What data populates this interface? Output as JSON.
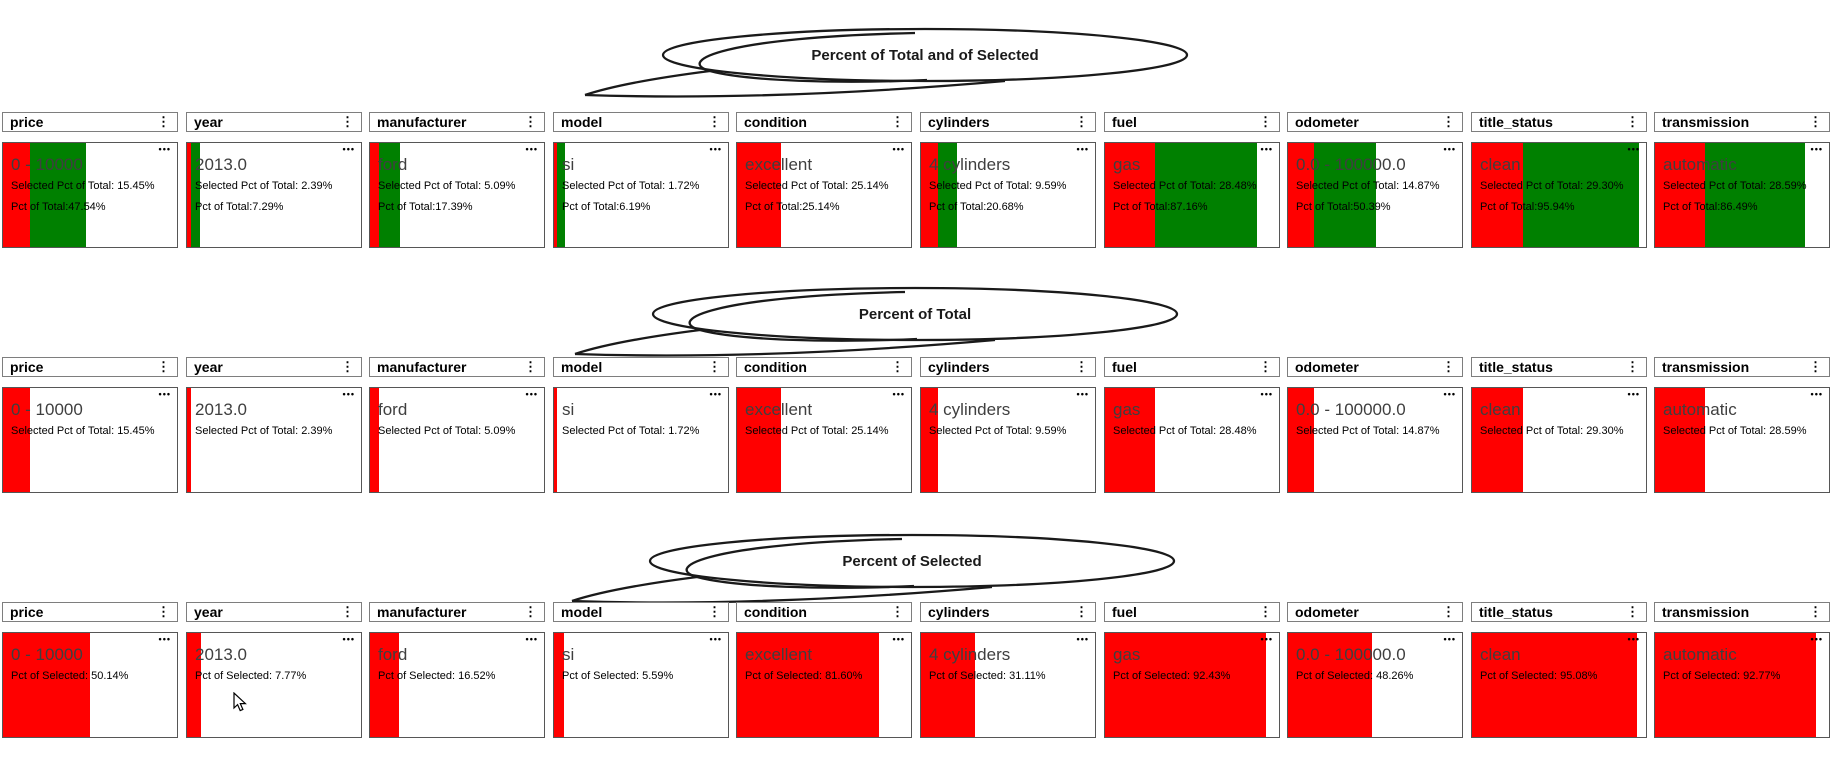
{
  "colors": {
    "selected_bar": "#ff0000",
    "total_bar": "#008000",
    "value_text": "#3f3f3f",
    "detail_text": "#000000",
    "card_border": "#565656"
  },
  "icons": {
    "column_menu_icon": "⋮",
    "more_options_icon": "•••"
  },
  "rows": [
    {
      "bubble_label": "Percent of Total and of Selected",
      "cards": [
        {
          "field": "price",
          "value": "0 - 10000",
          "line2": "Selected Pct of Total: 15.45%",
          "line3": "Pct of Total:47.54%",
          "selected_pct": 15.45,
          "total_pct": 47.54
        },
        {
          "field": "year",
          "value": "2013.0",
          "line2": "Selected Pct of Total: 2.39%",
          "line3": "Pct of Total:7.29%",
          "selected_pct": 2.39,
          "total_pct": 7.29
        },
        {
          "field": "manufacturer",
          "value": "ford",
          "line2": "Selected Pct of Total: 5.09%",
          "line3": "Pct of Total:17.39%",
          "selected_pct": 5.09,
          "total_pct": 17.39
        },
        {
          "field": "model",
          "value": "si",
          "line2": "Selected Pct of Total: 1.72%",
          "line3": "Pct of Total:6.19%",
          "selected_pct": 1.72,
          "total_pct": 6.19
        },
        {
          "field": "condition",
          "value": "excellent",
          "line2": "Selected Pct of Total: 25.14%",
          "line3": "Pct of Total:25.14%",
          "selected_pct": 25.14,
          "total_pct": 25.14
        },
        {
          "field": "cylinders",
          "value": "4 cylinders",
          "line2": "Selected Pct of Total: 9.59%",
          "line3": "Pct of Total:20.68%",
          "selected_pct": 9.59,
          "total_pct": 20.68
        },
        {
          "field": "fuel",
          "value": "gas",
          "line2": "Selected Pct of Total: 28.48%",
          "line3": "Pct of Total:87.16%",
          "selected_pct": 28.48,
          "total_pct": 87.16
        },
        {
          "field": "odometer",
          "value": "0.0 - 100000.0",
          "line2": "Selected Pct of Total: 14.87%",
          "line3": "Pct of Total:50.39%",
          "selected_pct": 14.87,
          "total_pct": 50.39
        },
        {
          "field": "title_status",
          "value": "clean",
          "line2": "Selected Pct of Total: 29.30%",
          "line3": "Pct of Total:95.94%",
          "selected_pct": 29.3,
          "total_pct": 95.94
        },
        {
          "field": "transmission",
          "value": "automatic",
          "line2": "Selected Pct of Total: 28.59%",
          "line3": "Pct of Total:86.49%",
          "selected_pct": 28.59,
          "total_pct": 86.49
        }
      ]
    },
    {
      "bubble_label": "Percent of Total",
      "cards": [
        {
          "field": "price",
          "value": "0 - 10000",
          "line2": "Selected Pct of Total: 15.45%",
          "selected_pct": 15.45
        },
        {
          "field": "year",
          "value": "2013.0",
          "line2": "Selected Pct of Total: 2.39%",
          "selected_pct": 2.39
        },
        {
          "field": "manufacturer",
          "value": "ford",
          "line2": "Selected Pct of Total: 5.09%",
          "selected_pct": 5.09
        },
        {
          "field": "model",
          "value": "si",
          "line2": "Selected Pct of Total: 1.72%",
          "selected_pct": 1.72
        },
        {
          "field": "condition",
          "value": "excellent",
          "line2": "Selected Pct of Total: 25.14%",
          "selected_pct": 25.14
        },
        {
          "field": "cylinders",
          "value": "4 cylinders",
          "line2": "Selected Pct of Total: 9.59%",
          "selected_pct": 9.59
        },
        {
          "field": "fuel",
          "value": "gas",
          "line2": "Selected Pct of Total: 28.48%",
          "selected_pct": 28.48
        },
        {
          "field": "odometer",
          "value": "0.0 - 100000.0",
          "line2": "Selected Pct of Total: 14.87%",
          "selected_pct": 14.87
        },
        {
          "field": "title_status",
          "value": "clean",
          "line2": "Selected Pct of Total: 29.30%",
          "selected_pct": 29.3
        },
        {
          "field": "transmission",
          "value": "automatic",
          "line2": "Selected Pct of Total: 28.59%",
          "selected_pct": 28.59
        }
      ]
    },
    {
      "bubble_label": "Percent of Selected",
      "cards": [
        {
          "field": "price",
          "value": "0 - 10000",
          "line2": "Pct of Selected: 50.14%",
          "selected_pct": 50.14
        },
        {
          "field": "year",
          "value": "2013.0",
          "line2": "Pct of Selected: 7.77%",
          "selected_pct": 7.77
        },
        {
          "field": "manufacturer",
          "value": "ford",
          "line2": "Pct of Selected: 16.52%",
          "selected_pct": 16.52
        },
        {
          "field": "model",
          "value": "si",
          "line2": "Pct of Selected: 5.59%",
          "selected_pct": 5.59
        },
        {
          "field": "condition",
          "value": "excellent",
          "line2": "Pct of Selected: 81.60%",
          "selected_pct": 81.6
        },
        {
          "field": "cylinders",
          "value": "4 cylinders",
          "line2": "Pct of Selected: 31.11%",
          "selected_pct": 31.11
        },
        {
          "field": "fuel",
          "value": "gas",
          "line2": "Pct of Selected: 92.43%",
          "selected_pct": 92.43
        },
        {
          "field": "odometer",
          "value": "0.0 - 100000.0",
          "line2": "Pct of Selected: 48.26%",
          "selected_pct": 48.26
        },
        {
          "field": "title_status",
          "value": "clean",
          "line2": "Pct of Selected: 95.08%",
          "selected_pct": 95.08
        },
        {
          "field": "transmission",
          "value": "automatic",
          "line2": "Pct of Selected: 92.77%",
          "selected_pct": 92.77
        }
      ]
    }
  ]
}
